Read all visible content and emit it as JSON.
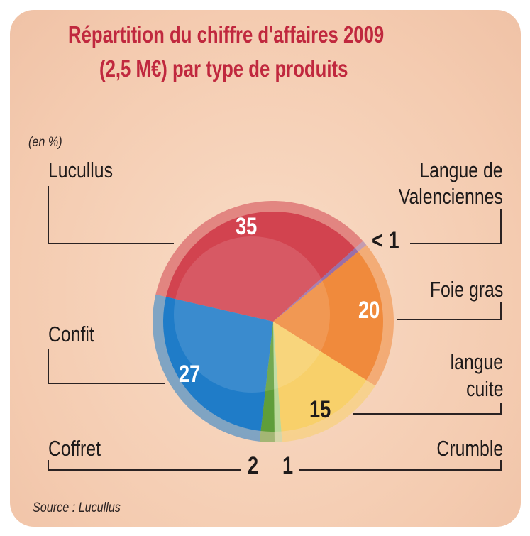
{
  "chart_data": {
    "type": "pie",
    "title": "Répartition du chiffre d'affaires 2009",
    "subtitle": "(2,5 M€) par type de produits",
    "unit_label": "(en %)",
    "source": "Source : Lucullus",
    "slices": [
      {
        "name": "Lucullus",
        "value": 35,
        "label": "35",
        "color": "#d2434f"
      },
      {
        "name": "Langue de Valenciennes",
        "value": 0.7,
        "label": "< 1",
        "color": "#9a6fa8"
      },
      {
        "name": "Foie gras",
        "value": 20,
        "label": "20",
        "color": "#f08a3c"
      },
      {
        "name": "langue cuite",
        "value": 15,
        "label": "15",
        "color": "#f8d06a"
      },
      {
        "name": "Crumble",
        "value": 1,
        "label": "1",
        "color": "#b9d99a"
      },
      {
        "name": "Coffret",
        "value": 2,
        "label": "2",
        "color": "#5f9e3a"
      },
      {
        "name": "Confit",
        "value": 27,
        "label": "27",
        "color": "#1f7cc8"
      }
    ]
  },
  "labels": {
    "lucullus": "Lucullus",
    "langue_val_1": "Langue de",
    "langue_val_2": "Valenciennes",
    "foie_gras": "Foie gras",
    "langue_cuite_1": "langue",
    "langue_cuite_2": "cuite",
    "confit": "Confit",
    "coffret": "Coffret",
    "crumble": "Crumble"
  }
}
